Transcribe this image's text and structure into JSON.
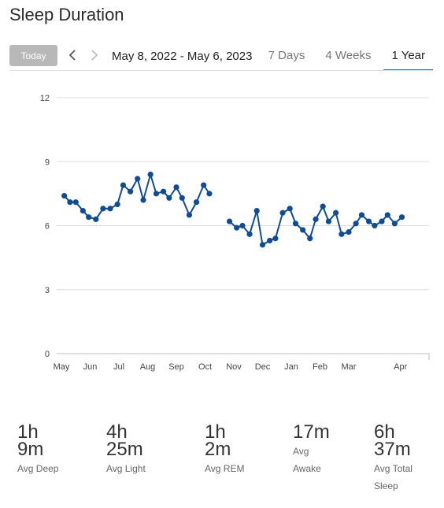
{
  "header": {
    "title": "Sleep Duration"
  },
  "toolbar": {
    "today_label": "Today",
    "prev_icon": "chevron-left-icon",
    "next_icon": "chevron-right-icon",
    "date_range": "May 8, 2022 - May 6, 2023",
    "tabs": [
      {
        "label": "7 Days",
        "active": false
      },
      {
        "label": "4 Weeks",
        "active": false
      },
      {
        "label": "1 Year",
        "active": true
      }
    ]
  },
  "colors": {
    "series": "#0e4c9a",
    "active_tab": "#2b6fb0",
    "grid": "#dddddd"
  },
  "chart_data": {
    "type": "line",
    "title": "",
    "xlabel": "",
    "ylabel": "",
    "ylim": [
      0,
      12
    ],
    "yticks": [
      0,
      3,
      6,
      9,
      12
    ],
    "xticks": [
      {
        "label": "May",
        "x": 0
      },
      {
        "label": "Jun",
        "x": 1
      },
      {
        "label": "Jul",
        "x": 2
      },
      {
        "label": "Aug",
        "x": 3
      },
      {
        "label": "Sep",
        "x": 4
      },
      {
        "label": "Oct",
        "x": 5
      },
      {
        "label": "Nov",
        "x": 6
      },
      {
        "label": "Dec",
        "x": 7
      },
      {
        "label": "Jan",
        "x": 8
      },
      {
        "label": "Feb",
        "x": 9
      },
      {
        "label": "Mar",
        "x": 10
      },
      {
        "label": "Apr",
        "x": 11.8
      }
    ],
    "xlim": [
      0,
      13
    ],
    "grid": true,
    "segments": [
      [
        [
          0.1,
          7.4
        ],
        [
          0.3,
          7.1
        ],
        [
          0.5,
          7.1
        ],
        [
          0.75,
          6.7
        ],
        [
          0.95,
          6.4
        ],
        [
          1.2,
          6.3
        ],
        [
          1.45,
          6.8
        ],
        [
          1.7,
          6.8
        ],
        [
          1.95,
          7.0
        ],
        [
          2.15,
          7.9
        ],
        [
          2.4,
          7.6
        ],
        [
          2.65,
          8.2
        ],
        [
          2.85,
          7.2
        ],
        [
          3.1,
          8.4
        ],
        [
          3.3,
          7.5
        ],
        [
          3.55,
          7.6
        ],
        [
          3.75,
          7.3
        ],
        [
          4.0,
          7.8
        ],
        [
          4.2,
          7.3
        ],
        [
          4.45,
          6.5
        ],
        [
          4.7,
          7.1
        ],
        [
          4.95,
          7.9
        ],
        [
          5.15,
          7.5
        ]
      ],
      [
        [
          5.85,
          6.2
        ],
        [
          6.1,
          5.9
        ],
        [
          6.3,
          6.0
        ],
        [
          6.55,
          5.6
        ],
        [
          6.8,
          6.7
        ],
        [
          7.0,
          5.1
        ],
        [
          7.25,
          5.3
        ],
        [
          7.45,
          5.4
        ],
        [
          7.7,
          6.6
        ],
        [
          7.95,
          6.8
        ],
        [
          8.15,
          6.1
        ],
        [
          8.4,
          5.8
        ],
        [
          8.65,
          5.4
        ],
        [
          8.85,
          6.3
        ],
        [
          9.1,
          6.9
        ],
        [
          9.3,
          6.2
        ],
        [
          9.55,
          6.6
        ],
        [
          9.75,
          5.6
        ],
        [
          10.0,
          5.7
        ],
        [
          10.25,
          6.1
        ],
        [
          10.45,
          6.5
        ],
        [
          10.7,
          6.2
        ],
        [
          10.9,
          6.0
        ],
        [
          11.15,
          6.2
        ],
        [
          11.35,
          6.5
        ],
        [
          11.6,
          6.1
        ],
        [
          11.85,
          6.4
        ]
      ]
    ]
  },
  "stats": [
    {
      "value": "1h\n9m",
      "label": "Avg Deep"
    },
    {
      "value": "4h\n25m",
      "label": "Avg Light"
    },
    {
      "value": "1h\n2m",
      "label": "Avg REM"
    },
    {
      "value": "17m",
      "label": "Avg\nAwake"
    },
    {
      "value": "6h\n37m",
      "label": "Avg Total\nSleep"
    }
  ]
}
